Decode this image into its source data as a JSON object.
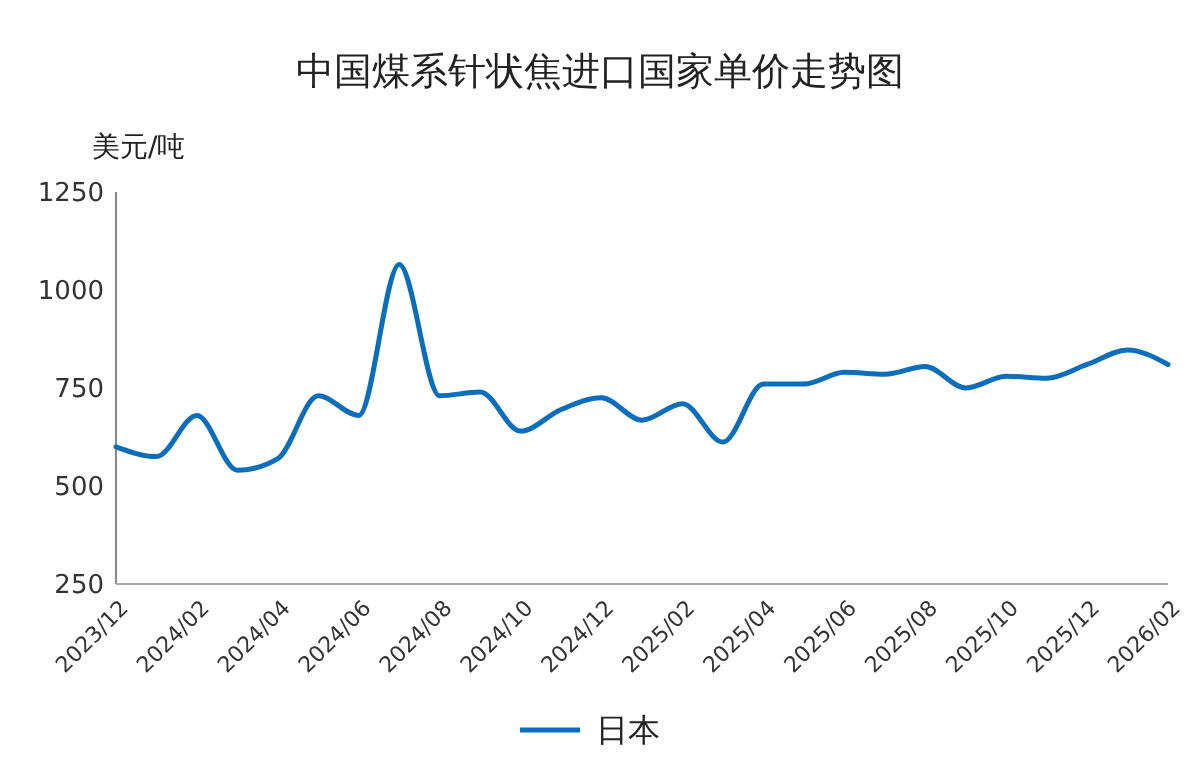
{
  "chart_data": {
    "type": "line",
    "title": "中国煤系针状焦进口国家单价走势图",
    "ylabel": "美元/吨",
    "categories": [
      "2023/12",
      null,
      "2024/02",
      null,
      "2024/04",
      null,
      "2024/06",
      null,
      "2024/08",
      null,
      "2024/10",
      null,
      "2024/12",
      null,
      "2025/02",
      null,
      "2025/04",
      null,
      "2025/06",
      null,
      "2025/08",
      null,
      "2025/10",
      null,
      "2025/12",
      null,
      "2026/02"
    ],
    "series": [
      {
        "name": "日本",
        "color": "#0a6ebd",
        "values": [
          600,
          575,
          680,
          540,
          570,
          730,
          680,
          1065,
          730,
          740,
          640,
          695,
          725,
          668,
          710,
          612,
          760,
          760,
          790,
          785,
          805,
          750,
          780,
          775,
          810,
          847,
          810
        ]
      }
    ],
    "ylim": [
      250,
      1250
    ],
    "yticks": [
      250,
      500,
      750,
      1000,
      1250
    ],
    "grid": false,
    "legend": "bottom",
    "marker": "none",
    "line_style": "solid"
  }
}
